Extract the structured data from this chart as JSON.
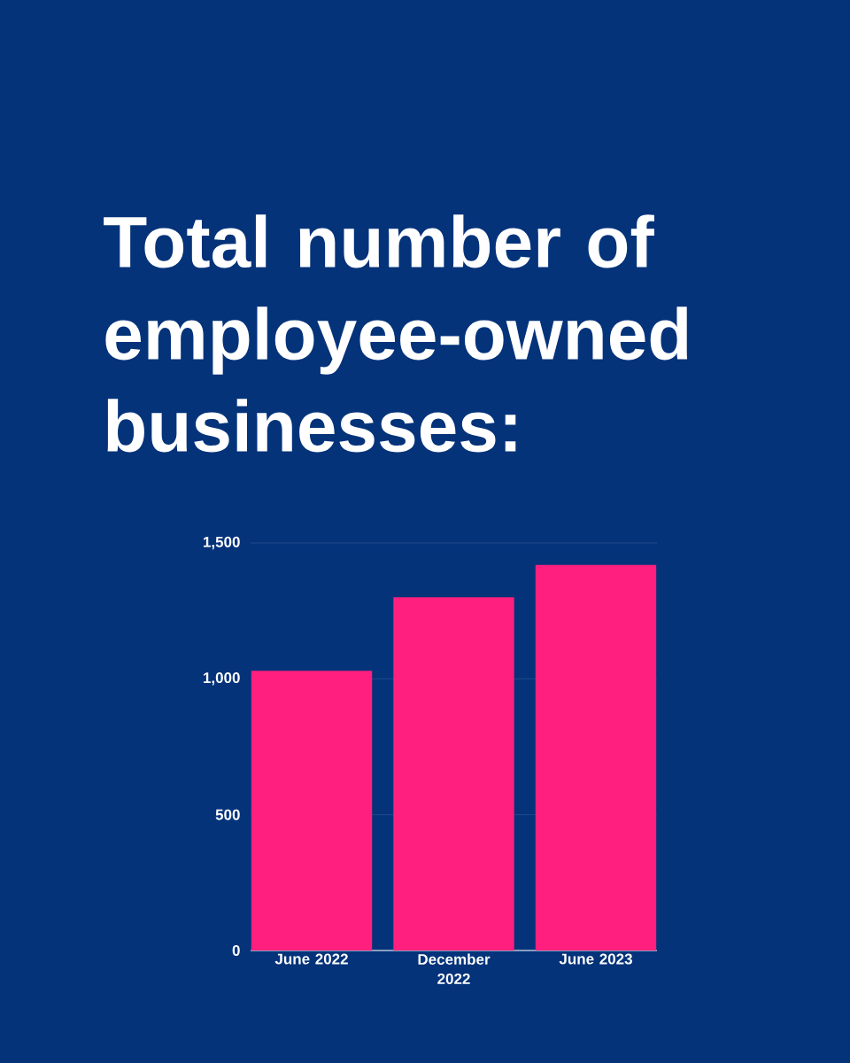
{
  "chart_data": {
    "type": "bar",
    "title": "Total number of employee-owned businesses:",
    "categories": [
      "June 2022",
      "December 2022",
      "June 2023"
    ],
    "values": [
      1030,
      1300,
      1420
    ],
    "color": "#ff1f7e",
    "ylim": [
      0,
      1500
    ],
    "yticks": [
      0,
      500,
      {
        "value": 1000,
        "label": "1,000"
      },
      {
        "value": 1500,
        "label": "1,500"
      }
    ],
    "grid": "y"
  }
}
